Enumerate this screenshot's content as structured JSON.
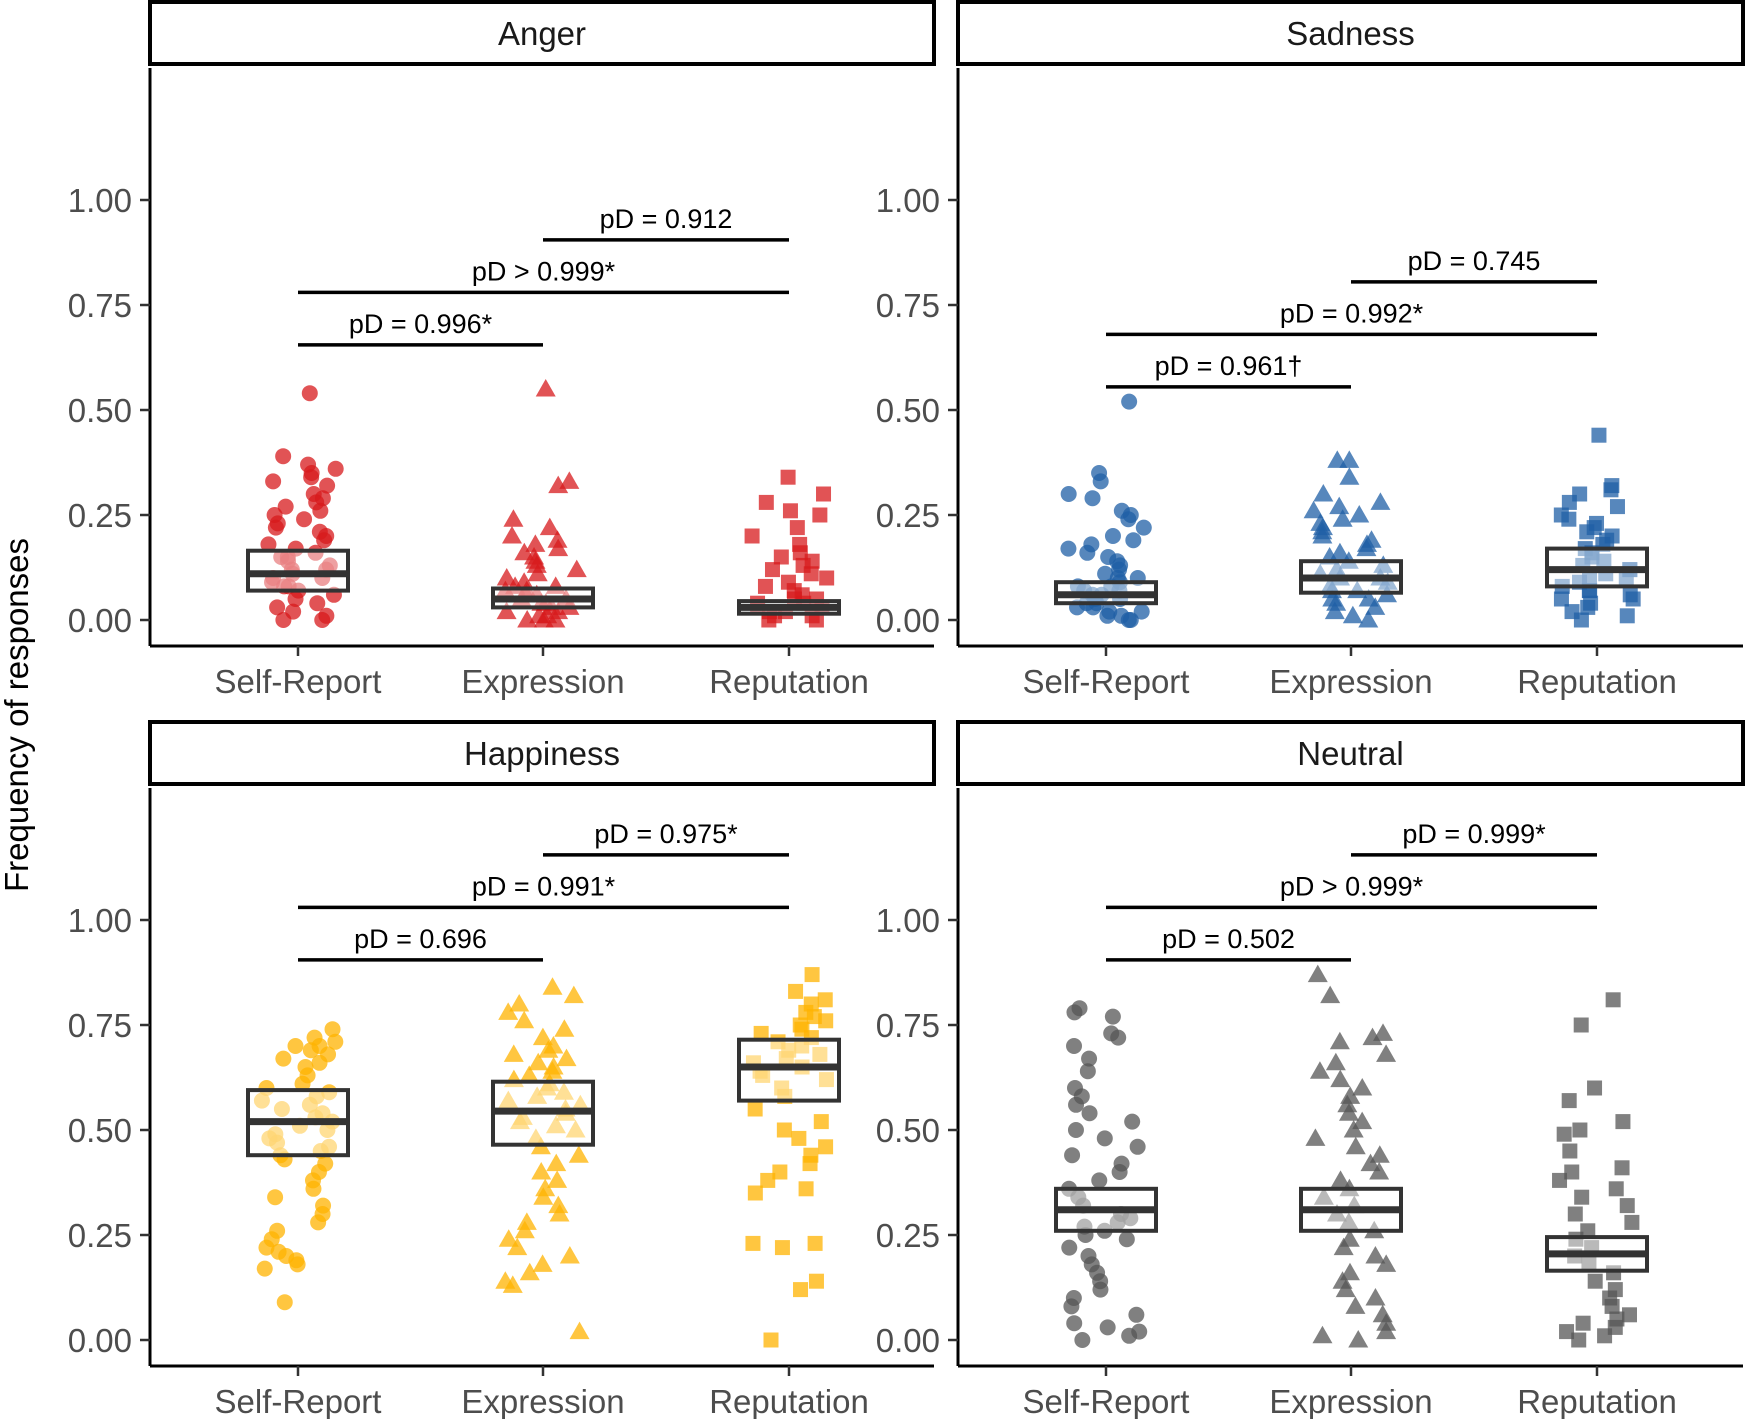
{
  "chart_data": {
    "type": "scatter",
    "ylabel": "Frequency of responses",
    "xlabel": "",
    "ylim": [
      -0.06,
      1.4
    ],
    "y_ticks": [
      "0.00",
      "0.25",
      "0.50",
      "0.75",
      "1.00"
    ],
    "y_tick_values": [
      0,
      0.25,
      0.5,
      0.75,
      1.0
    ],
    "categories": [
      "Self-Report",
      "Expression",
      "Reputation"
    ],
    "shapes": [
      "circle",
      "triangle",
      "square"
    ],
    "grid": false,
    "legend": "none",
    "panels": [
      {
        "title": "Anger",
        "color": "#d7191c",
        "boxes": [
          {
            "q1": 0.07,
            "median": 0.11,
            "q3": 0.165
          },
          {
            "q1": 0.03,
            "median": 0.05,
            "q3": 0.075
          },
          {
            "q1": 0.015,
            "median": 0.03,
            "q3": 0.045
          }
        ],
        "comparisons": [
          {
            "from": "Expression",
            "to": "Reputation",
            "label": "pD = 0.912",
            "y": 0.905
          },
          {
            "from": "Self-Report",
            "to": "Reputation",
            "label": "pD > 0.999*",
            "y": 0.78
          },
          {
            "from": "Self-Report",
            "to": "Expression",
            "label": "pD = 0.996*",
            "y": 0.655
          }
        ],
        "points": [
          [
            0.54,
            0.39,
            0.37,
            0.36,
            0.35,
            0.34,
            0.33,
            0.32,
            0.3,
            0.29,
            0.28,
            0.27,
            0.26,
            0.25,
            0.24,
            0.23,
            0.22,
            0.21,
            0.2,
            0.19,
            0.18,
            0.17,
            0.16,
            0.15,
            0.15,
            0.14,
            0.13,
            0.12,
            0.12,
            0.11,
            0.1,
            0.1,
            0.09,
            0.08,
            0.08,
            0.07,
            0.06,
            0.05,
            0.04,
            0.03,
            0.02,
            0.01,
            0.0,
            0.0
          ],
          [
            0.55,
            0.33,
            0.32,
            0.24,
            0.22,
            0.2,
            0.19,
            0.18,
            0.17,
            0.16,
            0.15,
            0.14,
            0.13,
            0.12,
            0.11,
            0.1,
            0.09,
            0.08,
            0.08,
            0.07,
            0.07,
            0.06,
            0.06,
            0.05,
            0.05,
            0.04,
            0.04,
            0.03,
            0.03,
            0.02,
            0.02,
            0.01,
            0.01,
            0.0,
            0.0,
            0.0
          ],
          [
            0.34,
            0.3,
            0.28,
            0.26,
            0.25,
            0.22,
            0.2,
            0.18,
            0.16,
            0.15,
            0.14,
            0.13,
            0.12,
            0.11,
            0.1,
            0.09,
            0.08,
            0.07,
            0.06,
            0.05,
            0.05,
            0.04,
            0.04,
            0.03,
            0.03,
            0.02,
            0.02,
            0.01,
            0.01,
            0.0,
            0.0
          ]
        ]
      },
      {
        "title": "Sadness",
        "color": "#1f5fa6",
        "boxes": [
          {
            "q1": 0.04,
            "median": 0.06,
            "q3": 0.09
          },
          {
            "q1": 0.065,
            "median": 0.1,
            "q3": 0.14
          },
          {
            "q1": 0.08,
            "median": 0.12,
            "q3": 0.17
          }
        ],
        "comparisons": [
          {
            "from": "Expression",
            "to": "Reputation",
            "label": "pD = 0.745",
            "y": 0.805
          },
          {
            "from": "Self-Report",
            "to": "Reputation",
            "label": "pD = 0.992*",
            "y": 0.68
          },
          {
            "from": "Self-Report",
            "to": "Expression",
            "label": "pD = 0.961†",
            "y": 0.555
          }
        ],
        "points": [
          [
            0.52,
            0.35,
            0.33,
            0.3,
            0.29,
            0.26,
            0.25,
            0.24,
            0.22,
            0.2,
            0.19,
            0.18,
            0.17,
            0.16,
            0.15,
            0.14,
            0.13,
            0.12,
            0.11,
            0.1,
            0.1,
            0.09,
            0.08,
            0.08,
            0.07,
            0.07,
            0.06,
            0.06,
            0.05,
            0.05,
            0.04,
            0.04,
            0.03,
            0.03,
            0.02,
            0.02,
            0.01,
            0.01,
            0.0,
            0.0
          ],
          [
            0.38,
            0.38,
            0.34,
            0.3,
            0.28,
            0.27,
            0.26,
            0.25,
            0.24,
            0.23,
            0.22,
            0.21,
            0.2,
            0.19,
            0.18,
            0.17,
            0.16,
            0.15,
            0.14,
            0.13,
            0.12,
            0.11,
            0.1,
            0.1,
            0.09,
            0.08,
            0.07,
            0.07,
            0.06,
            0.05,
            0.05,
            0.04,
            0.03,
            0.02,
            0.01,
            0.0
          ],
          [
            0.44,
            0.32,
            0.31,
            0.3,
            0.28,
            0.27,
            0.25,
            0.24,
            0.23,
            0.22,
            0.21,
            0.2,
            0.19,
            0.18,
            0.17,
            0.16,
            0.15,
            0.14,
            0.13,
            0.12,
            0.12,
            0.11,
            0.1,
            0.1,
            0.09,
            0.08,
            0.07,
            0.07,
            0.06,
            0.05,
            0.05,
            0.04,
            0.03,
            0.02,
            0.01,
            0.0
          ]
        ]
      },
      {
        "title": "Happiness",
        "color": "#ffb300",
        "boxes": [
          {
            "q1": 0.44,
            "median": 0.52,
            "q3": 0.595
          },
          {
            "q1": 0.465,
            "median": 0.545,
            "q3": 0.615
          },
          {
            "q1": 0.57,
            "median": 0.65,
            "q3": 0.715
          }
        ],
        "comparisons": [
          {
            "from": "Expression",
            "to": "Reputation",
            "label": "pD = 0.975*",
            "y": 1.155
          },
          {
            "from": "Self-Report",
            "to": "Reputation",
            "label": "pD = 0.991*",
            "y": 1.03
          },
          {
            "from": "Self-Report",
            "to": "Expression",
            "label": "pD = 0.696",
            "y": 0.905
          }
        ],
        "points": [
          [
            0.74,
            0.72,
            0.71,
            0.7,
            0.7,
            0.69,
            0.68,
            0.67,
            0.66,
            0.65,
            0.63,
            0.61,
            0.6,
            0.59,
            0.58,
            0.57,
            0.56,
            0.55,
            0.54,
            0.53,
            0.52,
            0.51,
            0.5,
            0.49,
            0.48,
            0.47,
            0.46,
            0.45,
            0.44,
            0.43,
            0.42,
            0.4,
            0.38,
            0.36,
            0.34,
            0.32,
            0.3,
            0.28,
            0.26,
            0.24,
            0.22,
            0.21,
            0.2,
            0.19,
            0.18,
            0.17,
            0.09
          ],
          [
            0.84,
            0.82,
            0.8,
            0.78,
            0.76,
            0.74,
            0.72,
            0.7,
            0.69,
            0.68,
            0.67,
            0.66,
            0.65,
            0.64,
            0.63,
            0.62,
            0.61,
            0.6,
            0.59,
            0.58,
            0.57,
            0.56,
            0.55,
            0.54,
            0.53,
            0.52,
            0.51,
            0.5,
            0.48,
            0.46,
            0.44,
            0.42,
            0.4,
            0.38,
            0.36,
            0.34,
            0.32,
            0.3,
            0.28,
            0.26,
            0.24,
            0.22,
            0.2,
            0.18,
            0.16,
            0.14,
            0.13,
            0.02
          ],
          [
            0.87,
            0.83,
            0.81,
            0.8,
            0.78,
            0.77,
            0.76,
            0.75,
            0.74,
            0.73,
            0.72,
            0.71,
            0.7,
            0.69,
            0.68,
            0.67,
            0.66,
            0.65,
            0.64,
            0.63,
            0.62,
            0.6,
            0.58,
            0.55,
            0.52,
            0.5,
            0.48,
            0.46,
            0.44,
            0.42,
            0.4,
            0.38,
            0.36,
            0.35,
            0.23,
            0.23,
            0.22,
            0.14,
            0.12,
            0.0
          ]
        ]
      },
      {
        "title": "Neutral",
        "color": "#555555",
        "boxes": [
          {
            "q1": 0.26,
            "median": 0.31,
            "q3": 0.36
          },
          {
            "q1": 0.26,
            "median": 0.31,
            "q3": 0.36
          },
          {
            "q1": 0.165,
            "median": 0.205,
            "q3": 0.245
          }
        ],
        "comparisons": [
          {
            "from": "Expression",
            "to": "Reputation",
            "label": "pD = 0.999*",
            "y": 1.155
          },
          {
            "from": "Self-Report",
            "to": "Reputation",
            "label": "pD > 0.999*",
            "y": 1.03
          },
          {
            "from": "Self-Report",
            "to": "Expression",
            "label": "pD = 0.502",
            "y": 0.905
          }
        ],
        "points": [
          [
            0.79,
            0.78,
            0.77,
            0.73,
            0.72,
            0.7,
            0.67,
            0.64,
            0.6,
            0.58,
            0.56,
            0.54,
            0.52,
            0.5,
            0.48,
            0.46,
            0.44,
            0.42,
            0.4,
            0.38,
            0.36,
            0.34,
            0.32,
            0.3,
            0.29,
            0.28,
            0.27,
            0.26,
            0.25,
            0.24,
            0.22,
            0.2,
            0.18,
            0.16,
            0.14,
            0.12,
            0.1,
            0.08,
            0.06,
            0.04,
            0.03,
            0.02,
            0.01,
            0.0
          ],
          [
            0.87,
            0.82,
            0.73,
            0.72,
            0.71,
            0.68,
            0.66,
            0.64,
            0.62,
            0.6,
            0.58,
            0.56,
            0.54,
            0.52,
            0.5,
            0.48,
            0.46,
            0.44,
            0.42,
            0.4,
            0.38,
            0.36,
            0.34,
            0.32,
            0.3,
            0.28,
            0.26,
            0.24,
            0.22,
            0.2,
            0.18,
            0.16,
            0.14,
            0.12,
            0.1,
            0.08,
            0.06,
            0.04,
            0.02,
            0.01,
            0.0
          ],
          [
            0.81,
            0.75,
            0.6,
            0.57,
            0.52,
            0.5,
            0.49,
            0.45,
            0.41,
            0.4,
            0.38,
            0.36,
            0.34,
            0.32,
            0.3,
            0.28,
            0.26,
            0.24,
            0.22,
            0.2,
            0.18,
            0.16,
            0.14,
            0.12,
            0.1,
            0.08,
            0.06,
            0.05,
            0.04,
            0.03,
            0.02,
            0.01,
            0.0
          ]
        ]
      }
    ]
  }
}
